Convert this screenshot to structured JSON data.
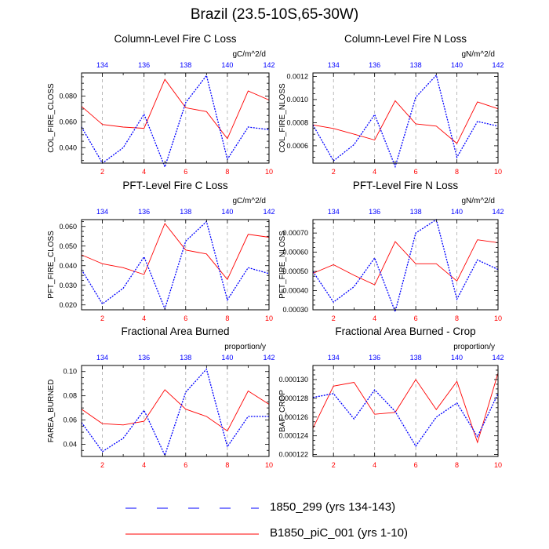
{
  "title": "Brazil (23.5-10S,65-30W)",
  "colors": {
    "case": "#ff0000",
    "control": "#0000ff",
    "grid": "#aaaaaa"
  },
  "legend": [
    {
      "label": "1850_299 (yrs 134-143)",
      "color": "#0000ff",
      "style": "dashed"
    },
    {
      "label": "B1850_piC_001 (yrs 1-10)",
      "color": "#ff0000",
      "style": "solid"
    }
  ],
  "chart_data": [
    {
      "type": "line",
      "title": "Column-Level Fire C Loss",
      "ylabel": "COL_FIRE_CLOSS",
      "units": "gC/m^2/d",
      "ylim": [
        0.028,
        0.098
      ],
      "yticks": [
        0.04,
        0.06,
        0.08
      ],
      "ytick_labels": [
        "0.040",
        "0.060",
        "0.080"
      ],
      "xlim_bottom": [
        1,
        10
      ],
      "xticks_bottom": [
        2,
        4,
        6,
        8,
        10
      ],
      "xticks_top": [
        134,
        136,
        138,
        140,
        142
      ],
      "series": [
        {
          "name": "B1850_piC_001 (yrs 1-10)",
          "x": [
            1,
            2,
            3,
            4,
            5,
            6,
            7,
            8,
            9,
            10
          ],
          "values": [
            0.072,
            0.058,
            0.056,
            0.055,
            0.093,
            0.071,
            0.068,
            0.047,
            0.084,
            0.077
          ]
        },
        {
          "name": "1850_299 (yrs 134-143)",
          "x": [
            1,
            2,
            3,
            4,
            5,
            6,
            7,
            8,
            9,
            10
          ],
          "values": [
            0.056,
            0.028,
            0.04,
            0.066,
            0.025,
            0.075,
            0.096,
            0.031,
            0.056,
            0.054
          ]
        }
      ]
    },
    {
      "type": "line",
      "title": "Column-Level Fire N Loss",
      "ylabel": "COL_FIRE_NLOSS",
      "units": "gN/m^2/d",
      "ylim": [
        0.00045,
        0.00123
      ],
      "yticks": [
        0.0006,
        0.0008,
        0.001,
        0.0012
      ],
      "ytick_labels": [
        "0.0006",
        "0.0008",
        "0.0010",
        "0.0012"
      ],
      "xlim_bottom": [
        1,
        10
      ],
      "xticks_bottom": [
        2,
        4,
        6,
        8,
        10
      ],
      "xticks_top": [
        134,
        136,
        138,
        140,
        142
      ],
      "series": [
        {
          "name": "B1850_piC_001 (yrs 1-10)",
          "x": [
            1,
            2,
            3,
            4,
            5,
            6,
            7,
            8,
            9,
            10
          ],
          "values": [
            0.00078,
            0.00075,
            0.0007,
            0.00065,
            0.00099,
            0.00079,
            0.00077,
            0.00062,
            0.00098,
            0.00092
          ]
        },
        {
          "name": "1850_299 (yrs 134-143)",
          "x": [
            1,
            2,
            3,
            4,
            5,
            6,
            7,
            8,
            9,
            10
          ],
          "values": [
            0.00078,
            0.00047,
            0.00061,
            0.00087,
            0.00042,
            0.00102,
            0.00121,
            0.0005,
            0.00081,
            0.00077
          ]
        }
      ]
    },
    {
      "type": "line",
      "title": "PFT-Level Fire C Loss",
      "ylabel": "PFT_FIRE_CLOSS",
      "units": "gC/m^2/d",
      "ylim": [
        0.0175,
        0.0635
      ],
      "yticks": [
        0.02,
        0.03,
        0.04,
        0.05,
        0.06
      ],
      "ytick_labels": [
        "0.020",
        "0.030",
        "0.040",
        "0.050",
        "0.060"
      ],
      "xlim_bottom": [
        1,
        10
      ],
      "xticks_bottom": [
        2,
        4,
        6,
        8,
        10
      ],
      "xticks_top": [
        134,
        136,
        138,
        140,
        142
      ],
      "series": [
        {
          "name": "B1850_piC_001 (yrs 1-10)",
          "x": [
            1,
            2,
            3,
            4,
            5,
            6,
            7,
            8,
            9,
            10
          ],
          "values": [
            0.0455,
            0.041,
            0.039,
            0.0355,
            0.0615,
            0.048,
            0.046,
            0.033,
            0.056,
            0.0545
          ]
        },
        {
          "name": "1850_299 (yrs 134-143)",
          "x": [
            1,
            2,
            3,
            4,
            5,
            6,
            7,
            8,
            9,
            10
          ],
          "values": [
            0.038,
            0.0205,
            0.0285,
            0.0445,
            0.018,
            0.0525,
            0.0625,
            0.0225,
            0.039,
            0.036
          ]
        }
      ]
    },
    {
      "type": "line",
      "title": "PFT-Level Fire N Loss",
      "ylabel": "PFT_FIRE_NLOSS",
      "units": "gN/m^2/d",
      "ylim": [
        0.0003,
        0.00077
      ],
      "yticks": [
        0.0003,
        0.0004,
        0.0005,
        0.0006,
        0.0007
      ],
      "ytick_labels": [
        "0.00030",
        "0.00040",
        "0.00050",
        "0.00060",
        "0.00070"
      ],
      "xlim_bottom": [
        1,
        10
      ],
      "xticks_bottom": [
        2,
        4,
        6,
        8,
        10
      ],
      "xticks_top": [
        134,
        136,
        138,
        140,
        142
      ],
      "series": [
        {
          "name": "B1850_piC_001 (yrs 1-10)",
          "x": [
            1,
            2,
            3,
            4,
            5,
            6,
            7,
            8,
            9,
            10
          ],
          "values": [
            0.00049,
            0.000535,
            0.00048,
            0.00043,
            0.000655,
            0.00054,
            0.00054,
            0.00045,
            0.000665,
            0.00065
          ]
        },
        {
          "name": "1850_299 (yrs 134-143)",
          "x": [
            1,
            2,
            3,
            4,
            5,
            6,
            7,
            8,
            9,
            10
          ],
          "values": [
            0.0005,
            0.00034,
            0.00042,
            0.00057,
            0.00029,
            0.0007,
            0.00077,
            0.000355,
            0.00056,
            0.00051
          ]
        }
      ]
    },
    {
      "type": "line",
      "title": "Fractional Area Burned",
      "ylabel": "FAREA_BURNED",
      "units": "proportion/y",
      "ylim": [
        0.03,
        0.105
      ],
      "yticks": [
        0.04,
        0.06,
        0.08,
        0.1
      ],
      "ytick_labels": [
        "0.04",
        "0.06",
        "0.08",
        "0.10"
      ],
      "xlim_bottom": [
        1,
        10
      ],
      "xticks_bottom": [
        2,
        4,
        6,
        8,
        10
      ],
      "xticks_top": [
        134,
        136,
        138,
        140,
        142
      ],
      "series": [
        {
          "name": "B1850_piC_001 (yrs 1-10)",
          "x": [
            1,
            2,
            3,
            4,
            5,
            6,
            7,
            8,
            9,
            10
          ],
          "values": [
            0.069,
            0.057,
            0.056,
            0.059,
            0.085,
            0.069,
            0.063,
            0.051,
            0.084,
            0.073
          ]
        },
        {
          "name": "1850_299 (yrs 134-143)",
          "x": [
            1,
            2,
            3,
            4,
            5,
            6,
            7,
            8,
            9,
            10
          ],
          "values": [
            0.058,
            0.034,
            0.045,
            0.068,
            0.031,
            0.083,
            0.102,
            0.038,
            0.063,
            0.063
          ]
        }
      ]
    },
    {
      "type": "line",
      "title": "Fractional Area Burned - Crop",
      "ylabel": "BAF_CROP",
      "units": "proportion/y",
      "ylim": [
        0.0001218,
        0.0001315
      ],
      "yticks": [
        0.000122,
        0.000124,
        0.000126,
        0.000128,
        0.00013
      ],
      "ytick_labels": [
        "0.000122",
        "0.000124",
        "0.000126",
        "0.000128",
        "0.000130"
      ],
      "xlim_bottom": [
        1,
        10
      ],
      "xticks_bottom": [
        2,
        4,
        6,
        8,
        10
      ],
      "xticks_top": [
        134,
        136,
        138,
        140,
        142
      ],
      "series": [
        {
          "name": "B1850_piC_001 (yrs 1-10)",
          "x": [
            1,
            2,
            3,
            4,
            5,
            6,
            7,
            8,
            9,
            10
          ],
          "values": [
            0.0001248,
            0.0001293,
            0.0001297,
            0.0001263,
            0.0001265,
            0.00013,
            0.0001268,
            0.0001298,
            0.0001233,
            0.0001307
          ]
        },
        {
          "name": "1850_299 (yrs 134-143)",
          "x": [
            1,
            2,
            3,
            4,
            5,
            6,
            7,
            8,
            9,
            10
          ],
          "values": [
            0.0001281,
            0.0001285,
            0.0001258,
            0.0001289,
            0.0001266,
            0.0001229,
            0.000126,
            0.0001275,
            0.0001239,
            0.0001285
          ]
        }
      ]
    }
  ]
}
